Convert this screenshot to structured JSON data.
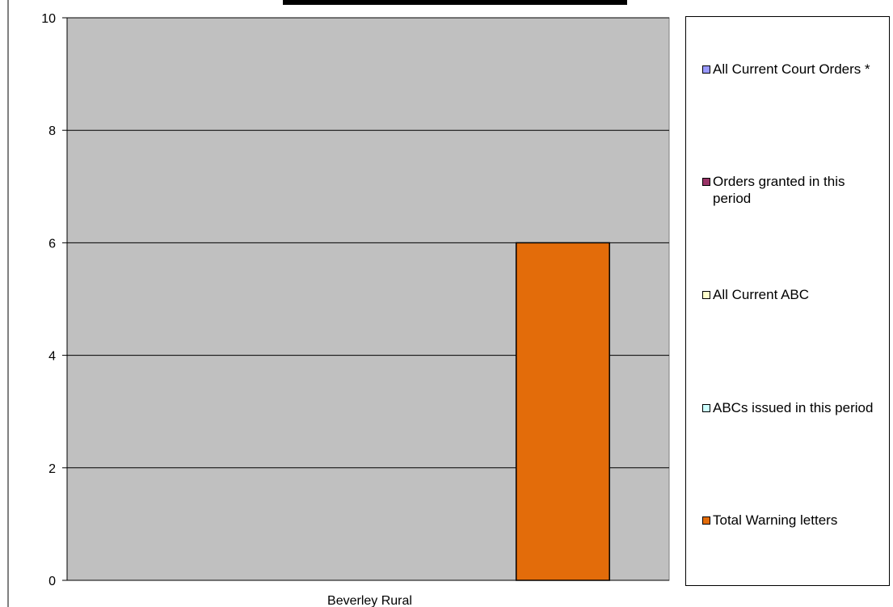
{
  "chart_data": {
    "type": "bar",
    "categories": [
      "Beverley Rural"
    ],
    "series": [
      {
        "name": "All Current Court Orders *",
        "values": [
          0
        ],
        "color": "#9999ff"
      },
      {
        "name": "Orders granted in this period",
        "values": [
          0
        ],
        "color": "#993366"
      },
      {
        "name": "All Current ABC",
        "values": [
          0
        ],
        "color": "#ffffcc"
      },
      {
        "name": "ABCs issued in this period",
        "values": [
          0
        ],
        "color": "#ccffff"
      },
      {
        "name": "Total Warning letters",
        "values": [
          6
        ],
        "color": "#e36c0a"
      }
    ],
    "ylim": [
      0,
      10
    ],
    "yticks": [
      "0",
      "2",
      "4",
      "6",
      "8",
      "10"
    ],
    "grid": true,
    "plot_background": "#c0c0c0",
    "legend_position": "right"
  }
}
